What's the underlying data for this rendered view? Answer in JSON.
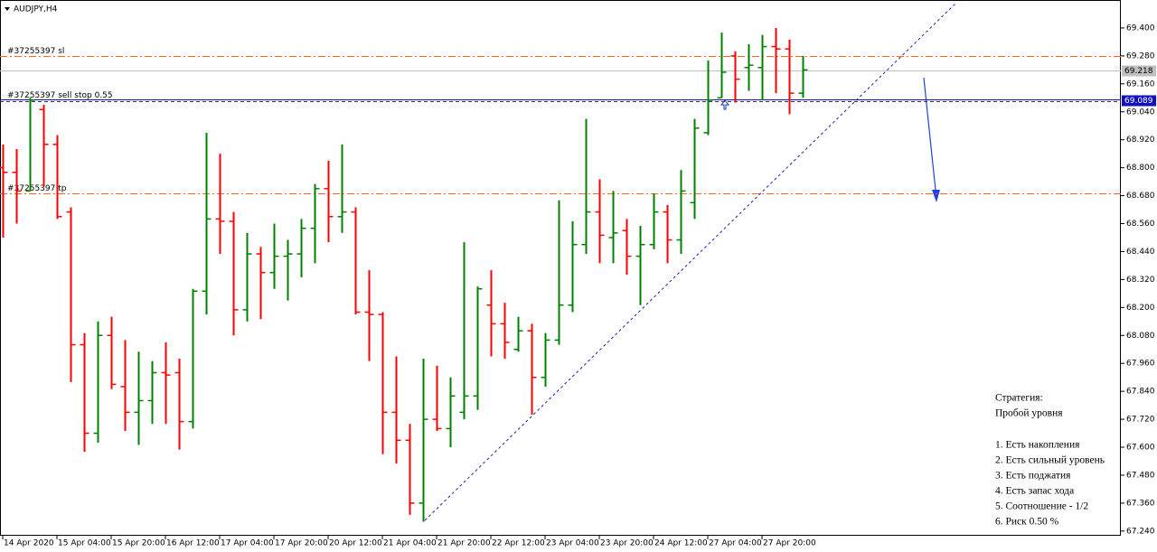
{
  "chart_data": {
    "type": "ohlc",
    "title": "AUDJPY,H4",
    "categories": [
      "14 Apr 2020",
      null,
      null,
      null,
      "15 Apr 04:00",
      null,
      null,
      null,
      "15 Apr 20:00",
      null,
      null,
      null,
      "16 Apr 12:00",
      null,
      null,
      null,
      "17 Apr 04:00",
      null,
      null,
      null,
      "17 Apr 20:00",
      null,
      null,
      null,
      "20 Apr 12:00",
      null,
      null,
      null,
      "21 Apr 04:00",
      null,
      null,
      null,
      "21 Apr 20:00",
      null,
      null,
      null,
      "22 Apr 12:00",
      null,
      null,
      null,
      "23 Apr 04:00",
      null,
      null,
      null,
      "23 Apr 20:00",
      null,
      null,
      null,
      "24 Apr 12:00",
      null,
      null,
      null,
      "27 Apr 04:00",
      null,
      null,
      null,
      "27 Apr 20:00",
      null,
      null,
      null
    ],
    "open": [
      68.8,
      68.78,
      68.7,
      69.05,
      68.9,
      68.61,
      68.04,
      67.66,
      68.08,
      67.86,
      67.75,
      67.8,
      67.92,
      67.92,
      67.71,
      68.27,
      68.58,
      68.57,
      68.19,
      68.43,
      68.35,
      68.42,
      68.43,
      68.54,
      68.71,
      68.59,
      68.61,
      68.18,
      68.17,
      67.75,
      67.63,
      67.36,
      67.72,
      67.68,
      67.75,
      67.82,
      68.21,
      68.13,
      68.02,
      68.1,
      67.9,
      68.06,
      68.21,
      68.47,
      68.61,
      68.5,
      68.53,
      68.42,
      68.47,
      68.61,
      68.49,
      68.65,
      68.95,
      69.1,
      69.28,
      69.23,
      69.23,
      69.32,
      69.31,
      69.12
    ],
    "high": [
      68.9,
      68.88,
      69.1,
      69.07,
      68.94,
      68.63,
      68.09,
      68.14,
      68.16,
      68.06,
      68.01,
      67.97,
      68.05,
      67.98,
      68.28,
      68.95,
      68.86,
      68.61,
      68.52,
      68.46,
      68.56,
      68.49,
      68.58,
      68.73,
      68.83,
      68.9,
      68.63,
      68.36,
      68.18,
      67.99,
      67.7,
      67.98,
      67.95,
      67.9,
      68.48,
      68.29,
      68.36,
      68.22,
      68.16,
      68.13,
      68.09,
      68.66,
      68.57,
      69.01,
      68.75,
      68.7,
      68.58,
      68.55,
      68.69,
      68.64,
      68.79,
      69.01,
      69.26,
      69.38,
      69.3,
      69.33,
      69.37,
      69.4,
      69.35,
      69.28
    ],
    "low": [
      68.5,
      68.56,
      68.7,
      68.72,
      68.58,
      67.88,
      67.58,
      67.62,
      67.85,
      67.67,
      67.61,
      67.7,
      67.7,
      67.59,
      67.68,
      68.17,
      68.43,
      68.08,
      68.14,
      68.15,
      68.28,
      68.23,
      68.33,
      68.39,
      68.48,
      68.52,
      68.17,
      67.97,
      67.57,
      67.53,
      67.31,
      67.28,
      67.67,
      67.6,
      67.72,
      67.76,
      67.99,
      67.98,
      68.01,
      67.74,
      67.86,
      68.04,
      68.18,
      68.43,
      68.39,
      68.39,
      68.34,
      68.21,
      68.45,
      68.39,
      68.43,
      68.58,
      68.94,
      69.1,
      69.08,
      69.13,
      69.09,
      69.12,
      69.03,
      69.1
    ],
    "close": [
      68.78,
      68.7,
      69.09,
      68.9,
      68.59,
      68.04,
      67.66,
      68.08,
      67.87,
      67.75,
      67.8,
      67.92,
      67.91,
      67.71,
      68.27,
      68.58,
      68.57,
      68.19,
      68.43,
      68.35,
      68.42,
      68.43,
      68.54,
      68.71,
      68.59,
      68.61,
      68.18,
      68.17,
      67.75,
      67.63,
      67.36,
      67.72,
      67.68,
      67.82,
      67.82,
      68.28,
      68.13,
      68.05,
      68.1,
      67.9,
      68.06,
      68.21,
      68.47,
      68.61,
      68.51,
      68.52,
      68.42,
      68.47,
      68.61,
      68.49,
      68.7,
      68.97,
      69.09,
      69.21,
      69.18,
      69.24,
      69.32,
      69.31,
      69.12,
      69.22
    ],
    "up_color": "#008000",
    "down_color": "#ff0000",
    "ylim": [
      67.22,
      69.52
    ],
    "yticks": [
      {
        "value": 67.24,
        "label": "67.240"
      },
      {
        "value": 67.36,
        "label": "67.360"
      },
      {
        "value": 67.48,
        "label": "67.480"
      },
      {
        "value": 67.6,
        "label": "67.600"
      },
      {
        "value": 67.72,
        "label": "67.720"
      },
      {
        "value": 67.84,
        "label": "67.840"
      },
      {
        "value": 67.96,
        "label": "67.960"
      },
      {
        "value": 68.08,
        "label": "68.080"
      },
      {
        "value": 68.2,
        "label": "68.200"
      },
      {
        "value": 68.32,
        "label": "68.320"
      },
      {
        "value": 68.44,
        "label": "68.440"
      },
      {
        "value": 68.56,
        "label": "68.560"
      },
      {
        "value": 68.68,
        "label": "68.680"
      },
      {
        "value": 68.8,
        "label": "68.800"
      },
      {
        "value": 68.92,
        "label": "68.920"
      },
      {
        "value": 69.04,
        "label": "69.040"
      },
      {
        "value": 69.16,
        "label": "69.160"
      },
      {
        "value": 69.28,
        "label": "69.280"
      },
      {
        "value": 69.4,
        "label": "69.400"
      }
    ],
    "grid": false,
    "bid": 69.218,
    "levels": [
      {
        "label": "#37255397 sl",
        "value": 69.28,
        "color": "#ff6a1a"
      },
      {
        "label": "#37255397 sell stop 0.55",
        "value": 69.089,
        "color": "#1010c0"
      },
      {
        "label": "#37255397 tp",
        "value": 68.69,
        "color": "#ff6a1a"
      }
    ],
    "annotations": [
      "Стратегия:",
      "Пробой уровня",
      "1. Есть накопления",
      "2. Есть сильный уровень",
      "3. Есть поджатия",
      "4. Есть запас хода",
      "5. Соотношение - 1/2",
      "6. Риск 0.50 %"
    ]
  }
}
